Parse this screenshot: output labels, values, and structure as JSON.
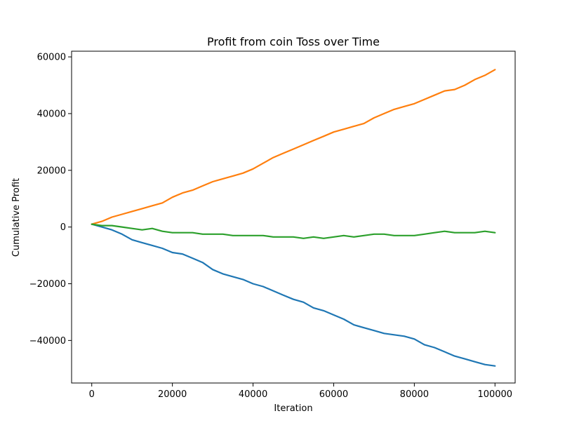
{
  "chart_data": {
    "type": "line",
    "title": "Profit from coin Toss over Time",
    "xlabel": "Iteration",
    "ylabel": "Cumulative Profit",
    "xlim": [
      -5000,
      105000
    ],
    "ylim": [
      -55000,
      62000
    ],
    "x_ticks": [
      0,
      20000,
      40000,
      60000,
      80000,
      100000
    ],
    "x_tick_labels": [
      "0",
      "20000",
      "40000",
      "60000",
      "80000",
      "100000"
    ],
    "y_ticks": [
      -40000,
      -20000,
      0,
      20000,
      40000,
      60000
    ],
    "y_tick_labels": [
      "−40000",
      "−20000",
      "0",
      "20000",
      "40000",
      "60000"
    ],
    "grid": false,
    "x": [
      0,
      2500,
      5000,
      7500,
      10000,
      12500,
      15000,
      17500,
      20000,
      22500,
      25000,
      27500,
      30000,
      32500,
      35000,
      37500,
      40000,
      42500,
      45000,
      47500,
      50000,
      52500,
      55000,
      57500,
      60000,
      62500,
      65000,
      67500,
      70000,
      72500,
      75000,
      77500,
      80000,
      82500,
      85000,
      87500,
      90000,
      92500,
      95000,
      97500,
      100000
    ],
    "series": [
      {
        "color": "#1f77b4",
        "values": [
          1000,
          0,
          -1000,
          -2500,
          -4500,
          -5500,
          -6500,
          -7500,
          -9000,
          -9500,
          -11000,
          -12500,
          -15000,
          -16500,
          -17500,
          -18500,
          -20000,
          -21000,
          -22500,
          -24000,
          -25500,
          -26500,
          -28500,
          -29500,
          -31000,
          -32500,
          -34500,
          -35500,
          -36500,
          -37500,
          -38000,
          -38500,
          -39500,
          -41500,
          -42500,
          -44000,
          -45500,
          -46500,
          -47500,
          -48500,
          -49000
        ]
      },
      {
        "color": "#ff7f0e",
        "values": [
          1000,
          2000,
          3500,
          4500,
          5500,
          6500,
          7500,
          8500,
          10500,
          12000,
          13000,
          14500,
          16000,
          17000,
          18000,
          19000,
          20500,
          22500,
          24500,
          26000,
          27500,
          29000,
          30500,
          32000,
          33500,
          34500,
          35500,
          36500,
          38500,
          40000,
          41500,
          42500,
          43500,
          45000,
          46500,
          48000,
          48500,
          50000,
          52000,
          53500,
          55500
        ]
      },
      {
        "color": "#2ca02c",
        "values": [
          1000,
          500,
          500,
          0,
          -500,
          -1000,
          -500,
          -1500,
          -2000,
          -2000,
          -2000,
          -2500,
          -2500,
          -2500,
          -3000,
          -3000,
          -3000,
          -3000,
          -3500,
          -3500,
          -3500,
          -4000,
          -3500,
          -4000,
          -3500,
          -3000,
          -3500,
          -3000,
          -2500,
          -2500,
          -3000,
          -3000,
          -3000,
          -2500,
          -2000,
          -1500,
          -2000,
          -2000,
          -2000,
          -1500,
          -2000
        ]
      }
    ]
  }
}
